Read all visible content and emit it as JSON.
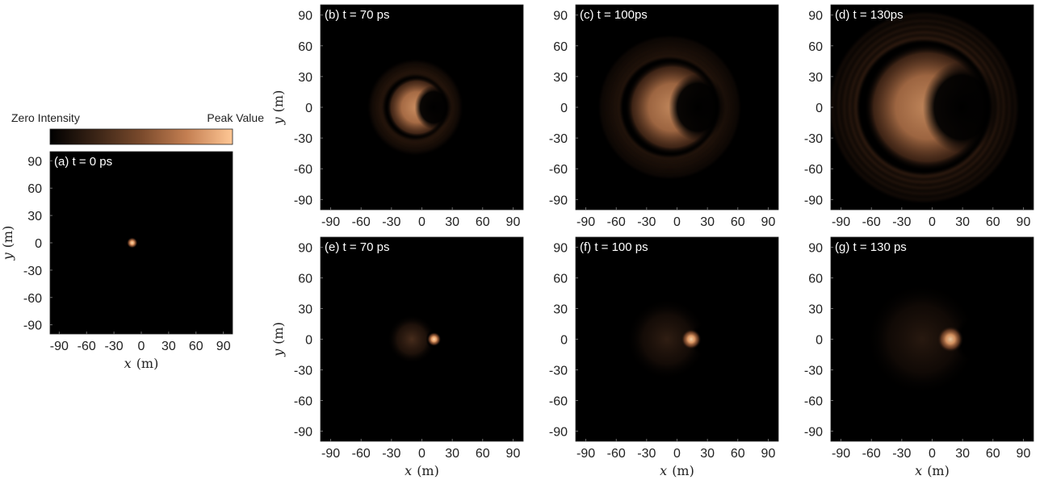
{
  "colorbar": {
    "low_label": "Zero Intensity",
    "high_label": "Peak Value",
    "colors": [
      "#000000",
      "#3a2416",
      "#7a4a2c",
      "#c47f52",
      "#ffc795"
    ]
  },
  "chart_data": [
    {
      "id": "a",
      "type": "heatmap",
      "title": "(a) t = 0 ps",
      "xlabel_var": "x",
      "xlabel_unit": "(m)",
      "ylabel_var": "y",
      "ylabel_unit": "(m)",
      "xlim": [
        -100,
        100
      ],
      "ylim": [
        -100,
        100
      ],
      "xticks": [
        -90,
        -60,
        -30,
        0,
        30,
        60,
        90
      ],
      "yticks": [
        90,
        60,
        30,
        0,
        -30,
        -60,
        -90
      ],
      "features": [
        {
          "kind": "spot",
          "cx": -10,
          "cy": 0,
          "r": 6,
          "peak": 1.0
        }
      ]
    },
    {
      "id": "b",
      "type": "heatmap",
      "title": "(b) t = 70 ps",
      "xlabel_var": "",
      "xlabel_unit": "",
      "ylabel_var": "y",
      "ylabel_unit": "(m)",
      "xlim": [
        -100,
        100
      ],
      "ylim": [
        -100,
        100
      ],
      "xticks": [
        -90,
        -60,
        -30,
        0,
        30,
        60,
        90
      ],
      "yticks": [
        90,
        60,
        30,
        0,
        -30,
        -60,
        -90
      ],
      "features": [
        {
          "kind": "crescent",
          "cx": -5,
          "cy": 0,
          "r": 30,
          "peak": 0.85
        }
      ]
    },
    {
      "id": "c",
      "type": "heatmap",
      "title": "(c) t = 100ps",
      "xlabel_var": "",
      "xlabel_unit": "",
      "ylabel_var": "",
      "ylabel_unit": "",
      "xlim": [
        -100,
        100
      ],
      "ylim": [
        -100,
        100
      ],
      "xticks": [
        -90,
        -60,
        -30,
        0,
        30,
        60,
        90
      ],
      "yticks": [
        90,
        60,
        30,
        0,
        -30,
        -60,
        -90
      ],
      "features": [
        {
          "kind": "crescent",
          "cx": -5,
          "cy": 0,
          "r": 46,
          "peak": 0.8
        }
      ]
    },
    {
      "id": "d",
      "type": "heatmap",
      "title": "(d) t = 130ps",
      "xlabel_var": "",
      "xlabel_unit": "",
      "ylabel_var": "",
      "ylabel_unit": "",
      "xlim": [
        -100,
        100
      ],
      "ylim": [
        -100,
        100
      ],
      "xticks": [
        -90,
        -60,
        -30,
        0,
        30,
        60,
        90
      ],
      "yticks": [
        90,
        60,
        30,
        0,
        -30,
        -60,
        -90
      ],
      "features": [
        {
          "kind": "crescent",
          "cx": -5,
          "cy": 0,
          "r": 62,
          "peak": 0.8
        }
      ]
    },
    {
      "id": "e",
      "type": "heatmap",
      "title": "(e) t = 70 ps",
      "xlabel_var": "x",
      "xlabel_unit": "(m)",
      "ylabel_var": "y",
      "ylabel_unit": "(m)",
      "xlim": [
        -100,
        100
      ],
      "ylim": [
        -100,
        100
      ],
      "xticks": [
        -90,
        -60,
        -30,
        0,
        30,
        60,
        90
      ],
      "yticks": [
        90,
        60,
        30,
        0,
        -30,
        -60,
        -90
      ],
      "features": [
        {
          "kind": "halo",
          "cx": -10,
          "cy": 0,
          "r": 24,
          "peak": 0.45
        },
        {
          "kind": "spot",
          "cx": 12,
          "cy": 0,
          "r": 7,
          "peak": 1.0
        }
      ]
    },
    {
      "id": "f",
      "type": "heatmap",
      "title": "(f) t = 100 ps",
      "xlabel_var": "x",
      "xlabel_unit": "(m)",
      "ylabel_var": "",
      "ylabel_unit": "",
      "xlim": [
        -100,
        100
      ],
      "ylim": [
        -100,
        100
      ],
      "xticks": [
        -90,
        -60,
        -30,
        0,
        30,
        60,
        90
      ],
      "yticks": [
        90,
        60,
        30,
        0,
        -30,
        -60,
        -90
      ],
      "features": [
        {
          "kind": "halo",
          "cx": -10,
          "cy": 0,
          "r": 40,
          "peak": 0.3
        },
        {
          "kind": "spot",
          "cx": 14,
          "cy": 0,
          "r": 10,
          "peak": 0.95
        }
      ]
    },
    {
      "id": "g",
      "type": "heatmap",
      "title": "(g) t = 130 ps",
      "xlabel_var": "x",
      "xlabel_unit": "(m)",
      "ylabel_var": "",
      "ylabel_unit": "",
      "xlim": [
        -100,
        100
      ],
      "ylim": [
        -100,
        100
      ],
      "xticks": [
        -90,
        -60,
        -30,
        0,
        30,
        60,
        90
      ],
      "yticks": [
        90,
        60,
        30,
        0,
        -30,
        -60,
        -90
      ],
      "features": [
        {
          "kind": "halo",
          "cx": -10,
          "cy": 0,
          "r": 55,
          "peak": 0.25
        },
        {
          "kind": "spot",
          "cx": 18,
          "cy": 0,
          "r": 13,
          "peak": 0.9
        }
      ]
    }
  ]
}
